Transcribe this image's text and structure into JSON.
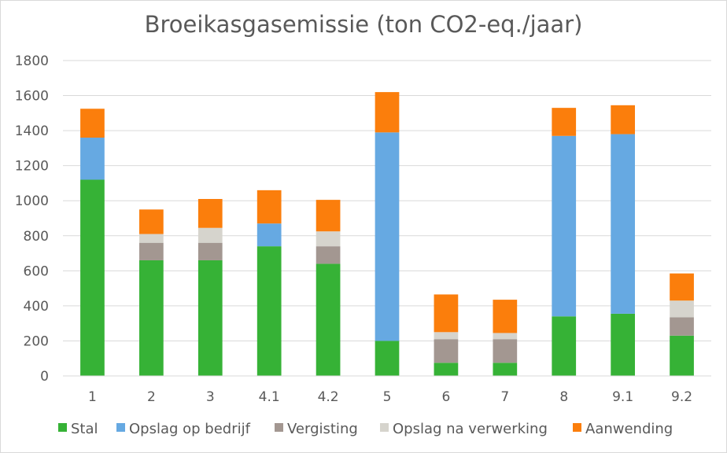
{
  "chart_data": {
    "type": "bar",
    "stacked": true,
    "title": "Broeikasgasemissie (ton CO2-eq./jaar)",
    "xlabel": "",
    "ylabel": "",
    "categories": [
      "1",
      "2",
      "3",
      "4.1",
      "4.2",
      "5",
      "6",
      "7",
      "8",
      "9.1",
      "9.2"
    ],
    "ylim": [
      0,
      1800
    ],
    "yticks": [
      "0",
      "200",
      "400",
      "600",
      "800",
      "1000",
      "1200",
      "1400",
      "1600",
      "1800"
    ],
    "grid": true,
    "legend_position": "bottom",
    "series": [
      {
        "name": "Stal",
        "color": "#36b236",
        "values": [
          1120,
          660,
          660,
          740,
          640,
          200,
          75,
          75,
          340,
          355,
          230
        ]
      },
      {
        "name": "Opslag op bedrijf",
        "color": "#66a9e2",
        "values": [
          240,
          0,
          0,
          130,
          0,
          1190,
          0,
          0,
          1030,
          1025,
          0
        ]
      },
      {
        "name": "Vergisting",
        "color": "#a39791",
        "values": [
          0,
          100,
          100,
          0,
          100,
          0,
          135,
          135,
          0,
          0,
          105
        ]
      },
      {
        "name": "Opslag na verwerking",
        "color": "#d6d4cd",
        "values": [
          0,
          50,
          85,
          0,
          85,
          0,
          40,
          35,
          0,
          0,
          95
        ]
      },
      {
        "name": "Aanwending",
        "color": "#fb7e0c",
        "values": [
          165,
          140,
          165,
          190,
          180,
          230,
          215,
          190,
          160,
          165,
          155
        ]
      }
    ]
  }
}
